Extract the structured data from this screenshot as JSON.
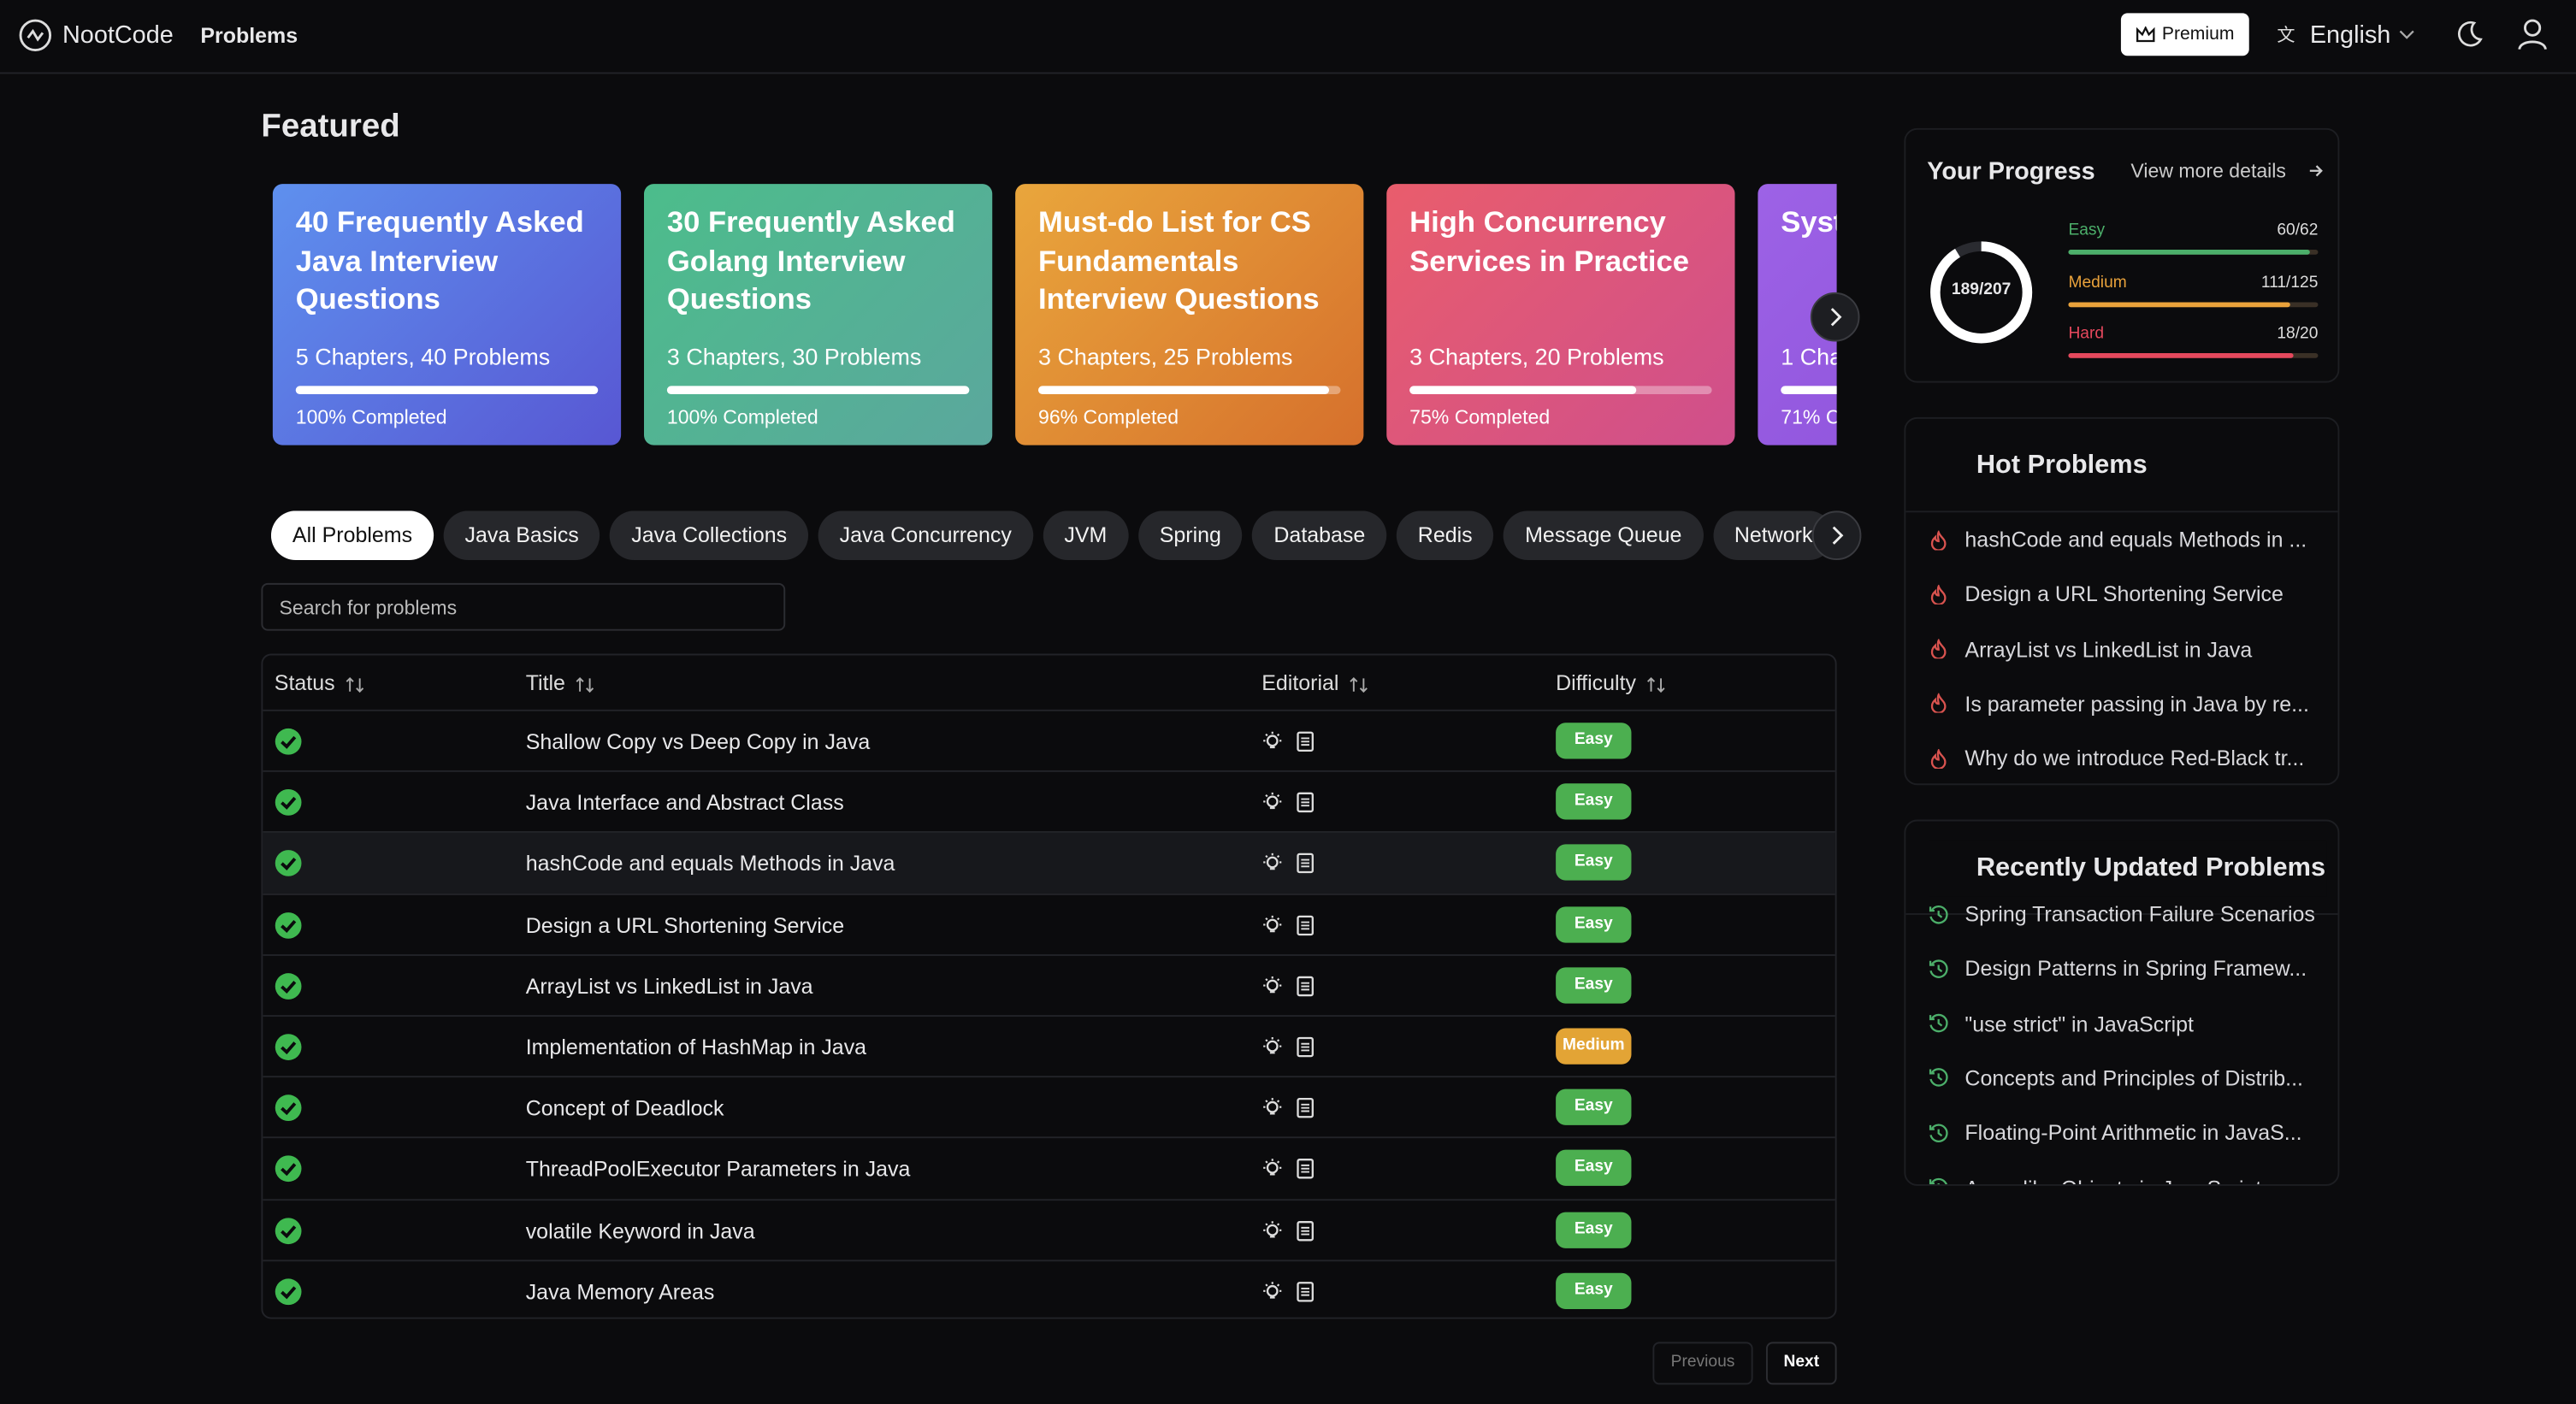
{
  "header": {
    "logo": "NootCode",
    "nav": [
      "Problems"
    ],
    "premium": "Premium",
    "language": "English"
  },
  "featured": {
    "title": "Featured",
    "cards": [
      {
        "title": "40 Frequently Asked Java Interview Questions",
        "meta": "5 Chapters, 40 Problems",
        "progress": 100,
        "label": "100% Completed",
        "colors": [
          "#5e90ee",
          "#5857d3"
        ]
      },
      {
        "title": "30 Frequently Asked Golang Interview Questions",
        "meta": "3 Chapters, 30 Problems",
        "progress": 100,
        "label": "100% Completed",
        "colors": [
          "#4cbd8b",
          "#5ba79d"
        ]
      },
      {
        "title": "Must-do List for CS Fundamentals Interview Questions",
        "meta": "3 Chapters, 25 Problems",
        "progress": 96,
        "label": "96% Completed",
        "colors": [
          "#e9a63c",
          "#d6702c"
        ]
      },
      {
        "title": "High Concurrency Services in Practice",
        "meta": "3 Chapters, 20 Problems",
        "progress": 75,
        "label": "75% Completed",
        "colors": [
          "#e95d6c",
          "#cf4f8c"
        ]
      },
      {
        "title": "Syst",
        "meta": "1 Cha",
        "progress": 71,
        "label": "71% C",
        "colors": [
          "#9d62e6",
          "#8a4fd8"
        ]
      }
    ]
  },
  "tags": [
    "All Problems",
    "Java Basics",
    "Java Collections",
    "Java Concurrency",
    "JVM",
    "Spring",
    "Database",
    "Redis",
    "Message Queue",
    "Network"
  ],
  "search": {
    "placeholder": "Search for problems"
  },
  "table": {
    "headers": [
      "Status",
      "Title",
      "Editorial",
      "Difficulty"
    ],
    "difficulty_colors": {
      "Easy": "#4caf50",
      "Medium": "#e3a435"
    },
    "rows": [
      {
        "title": "Shallow Copy vs Deep Copy in Java",
        "difficulty": "Easy"
      },
      {
        "title": "Java Interface and Abstract Class",
        "difficulty": "Easy"
      },
      {
        "title": "hashCode and equals Methods in Java",
        "difficulty": "Easy"
      },
      {
        "title": "Design a URL Shortening Service",
        "difficulty": "Easy"
      },
      {
        "title": "ArrayList vs LinkedList in Java",
        "difficulty": "Easy"
      },
      {
        "title": "Implementation of HashMap in Java",
        "difficulty": "Medium"
      },
      {
        "title": "Concept of Deadlock",
        "difficulty": "Easy"
      },
      {
        "title": "ThreadPoolExecutor Parameters in Java",
        "difficulty": "Easy"
      },
      {
        "title": "volatile Keyword in Java",
        "difficulty": "Easy"
      },
      {
        "title": "Java Memory Areas",
        "difficulty": "Easy"
      }
    ]
  },
  "pagination": {
    "previous": "Previous",
    "next": "Next"
  },
  "progress": {
    "title": "Your Progress",
    "link": "View more details",
    "solved": 189,
    "total": 207,
    "label": "189/207",
    "levels": [
      {
        "name": "Easy",
        "solved": 60,
        "total": 62,
        "label": "60/62",
        "color": "#4caf6a"
      },
      {
        "name": "Medium",
        "solved": 111,
        "total": 125,
        "label": "111/125",
        "color": "#e9a23b"
      },
      {
        "name": "Hard",
        "solved": 18,
        "total": 20,
        "label": "18/20",
        "color": "#e5485d"
      }
    ]
  },
  "hot": {
    "title": "Hot Problems",
    "items": [
      "hashCode and equals Methods in ...",
      "Design a URL Shortening Service",
      "ArrayList vs LinkedList in Java",
      "Is parameter passing in Java by re...",
      "Why do we introduce Red-Black tr..."
    ]
  },
  "recent": {
    "title": "Recently Updated Problems",
    "items": [
      "Spring Transaction Failure Scenarios",
      "Design Patterns in Spring Framew...",
      "\"use strict\" in JavaScript",
      "Concepts and Principles of Distrib...",
      "Floating-Point Arithmetic in JavaS...",
      "Array-like Objects in JavaScript"
    ]
  }
}
